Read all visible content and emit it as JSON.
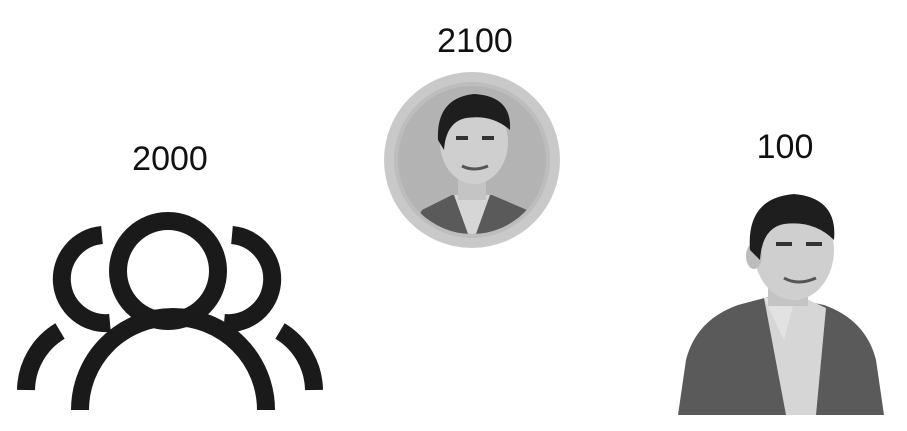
{
  "nodes": [
    {
      "id": "group",
      "label": "2000",
      "icon": "group-of-people-icon"
    },
    {
      "id": "coin",
      "label": "2100",
      "icon": "portrait-coin-icon"
    },
    {
      "id": "person",
      "label": "100",
      "icon": "person-portrait-icon"
    }
  ],
  "colors": {
    "ink": "#1a1a1a",
    "coin_outer": "#c9c9c9",
    "coin_inner": "#b3b3b3",
    "jacket": "#5a5a5a",
    "shirt": "#d6d6d6",
    "skin": "#cfcfcf",
    "hair": "#1e1e1e"
  }
}
